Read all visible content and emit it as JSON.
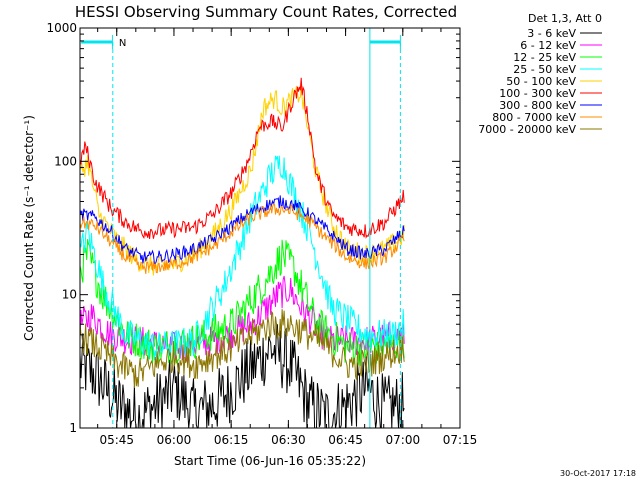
{
  "chart_data": {
    "type": "line",
    "title": "HESSI Observing Summary Count Rates, Corrected",
    "xlabel": "Start Time (06-Jun-16 05:35:22)",
    "ylabel": "Corrected Count Rate (s⁻¹ detector⁻¹)",
    "y_scale": "log",
    "ylim": [
      1,
      1000
    ],
    "xlim": [
      "05:35:22",
      "07:15:00"
    ],
    "x_tick_labels": [
      "05:45",
      "06:00",
      "06:15",
      "06:30",
      "06:45",
      "07:00",
      "07:15"
    ],
    "y_tick_labels": [
      "1",
      "10",
      "100",
      "1000"
    ],
    "footer_date": "30-Oct-2017 17:18",
    "attenuator_marker_label": "N",
    "legend_placement": "right",
    "legend_header": "Det 1,3, Att 0",
    "series": [
      {
        "name": "3 - 6 keV",
        "color": "#000000",
        "x_minutes": [
          0,
          4,
          10,
          15,
          20,
          25,
          30,
          35,
          40,
          50,
          55,
          60,
          65,
          70,
          75,
          80,
          85
        ],
        "values": [
          3,
          2.5,
          1.5,
          1.2,
          1.5,
          2,
          1.3,
          1.5,
          2,
          4,
          3,
          1.5,
          1.2,
          1.5,
          2,
          1.4,
          1.5
        ]
      },
      {
        "name": "6 - 12 keV",
        "color": "#ff00ff",
        "x_minutes": [
          0,
          3,
          8,
          15,
          25,
          35,
          45,
          52,
          55,
          58,
          65,
          75,
          85
        ],
        "values": [
          6,
          7,
          5,
          4.5,
          4,
          4.5,
          6,
          10,
          11,
          8,
          4.5,
          4.5,
          5
        ]
      },
      {
        "name": "12 - 25 keV",
        "color": "#00ff00",
        "x_minutes": [
          0,
          2,
          6,
          12,
          20,
          30,
          40,
          48,
          53,
          56,
          62,
          70,
          80,
          85
        ],
        "values": [
          15,
          20,
          10,
          5,
          4,
          4.5,
          6,
          12,
          20,
          16,
          6,
          4,
          4,
          4.5
        ]
      },
      {
        "name": "25 - 50 keV",
        "color": "#00ffff",
        "x_minutes": [
          0,
          2,
          6,
          12,
          20,
          30,
          38,
          45,
          50,
          53,
          55,
          60,
          66,
          75,
          82,
          85
        ],
        "values": [
          20,
          30,
          12,
          5,
          4,
          4.5,
          12,
          40,
          80,
          100,
          70,
          30,
          8,
          5,
          5,
          6
        ]
      },
      {
        "name": "50 - 100 keV",
        "color": "#ffd200",
        "x_minutes": [
          0,
          2,
          5,
          10,
          15,
          20,
          25,
          30,
          35,
          40,
          45,
          48,
          51,
          53,
          56,
          58,
          62,
          66,
          70,
          75,
          80,
          85
        ],
        "values": [
          80,
          100,
          40,
          25,
          18,
          16,
          17,
          20,
          28,
          45,
          90,
          250,
          300,
          250,
          300,
          330,
          80,
          35,
          22,
          20,
          22,
          28
        ]
      },
      {
        "name": "100 - 300 keV",
        "color": "#ff0000",
        "x_minutes": [
          0,
          1.5,
          4,
          8,
          12,
          16,
          20,
          25,
          30,
          35,
          40,
          44,
          47,
          50,
          53,
          56,
          58,
          60,
          62,
          66,
          70,
          75,
          80,
          85
        ],
        "values": [
          100,
          130,
          70,
          45,
          35,
          30,
          30,
          31,
          32,
          40,
          60,
          100,
          180,
          200,
          180,
          300,
          380,
          200,
          80,
          40,
          32,
          30,
          35,
          55
        ]
      },
      {
        "name": "300 - 800 keV",
        "color": "#0000ff",
        "x_minutes": [
          0,
          4,
          8,
          12,
          16,
          20,
          25,
          30,
          35,
          40,
          45,
          50,
          53,
          56,
          60,
          65,
          70,
          75,
          80,
          85
        ],
        "values": [
          40,
          38,
          30,
          22,
          19,
          19,
          20,
          22,
          26,
          33,
          42,
          48,
          50,
          47,
          40,
          30,
          22,
          20,
          22,
          30
        ]
      },
      {
        "name": "800 - 7000 keV",
        "color": "#ff8c00",
        "x_minutes": [
          0,
          4,
          8,
          12,
          16,
          20,
          25,
          30,
          35,
          40,
          45,
          50,
          53,
          56,
          60,
          65,
          70,
          75,
          80,
          85
        ],
        "values": [
          35,
          33,
          25,
          19,
          16,
          16,
          17,
          19,
          23,
          30,
          38,
          43,
          44,
          42,
          36,
          26,
          19,
          17,
          19,
          26
        ]
      },
      {
        "name": "7000 - 20000 keV",
        "color": "#8b7500",
        "x_minutes": [
          0,
          5,
          10,
          15,
          20,
          25,
          30,
          35,
          40,
          45,
          50,
          55,
          60,
          65,
          70,
          75,
          80,
          85
        ],
        "values": [
          5,
          4,
          3,
          2.5,
          3,
          3.5,
          3,
          3.5,
          4,
          5,
          6,
          6,
          5,
          4,
          3,
          3,
          3.5,
          4
        ]
      }
    ]
  }
}
